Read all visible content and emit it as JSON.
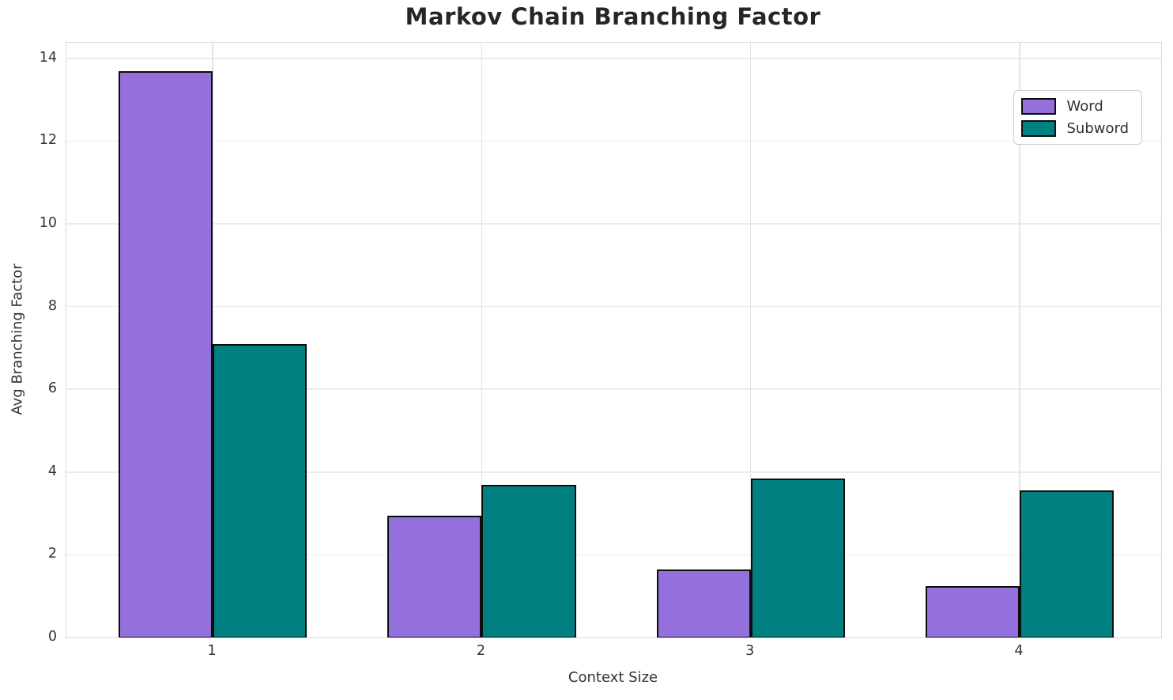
{
  "chart_data": {
    "type": "bar",
    "title": "Markov Chain Branching Factor",
    "xlabel": "Context Size",
    "ylabel": "Avg Branching Factor",
    "categories": [
      "1",
      "2",
      "3",
      "4"
    ],
    "series": [
      {
        "name": "Word",
        "color": "#9370DB",
        "values": [
          13.7,
          2.95,
          1.65,
          1.25
        ]
      },
      {
        "name": "Subword",
        "color": "#008080",
        "values": [
          7.1,
          3.7,
          3.85,
          3.55
        ]
      }
    ],
    "yticks": [
      0,
      2,
      4,
      6,
      8,
      10,
      12,
      14
    ],
    "ylim": [
      0,
      14.38
    ],
    "grid": true,
    "legend_position": "upper right",
    "bar_edge_color": "#0d0d0d",
    "grid_color": "#ebebeb",
    "spine_color": "#d9d9d9",
    "text_color": "#333333",
    "title_color": "#262626",
    "background_color": "#ffffff"
  }
}
